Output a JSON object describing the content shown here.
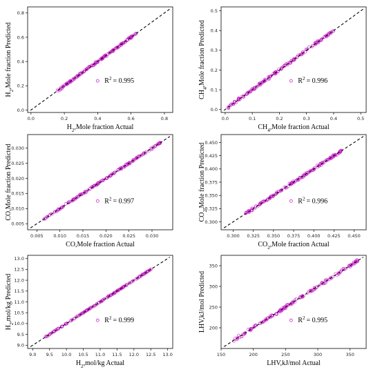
{
  "point_color": "#cc22cc",
  "line_color": "#000000",
  "chart_data": [
    {
      "type": "scatter",
      "xlabel_parts": [
        [
          "H",
          false
        ],
        [
          "2",
          true
        ],
        [
          ",Mole fraction Actual",
          false
        ]
      ],
      "ylabel_parts": [
        [
          "H",
          false
        ],
        [
          "2",
          true
        ],
        [
          ",Mole fraction Predicted",
          false
        ]
      ],
      "r2_text": "= 0.995",
      "xlim": [
        -0.02,
        0.85
      ],
      "ylim": [
        -0.02,
        0.85
      ],
      "xticks": [
        0.0,
        0.2,
        0.4,
        0.6,
        0.8
      ],
      "yticks": [
        0.0,
        0.2,
        0.4,
        0.6,
        0.8
      ],
      "xtick_labels": [
        "0.0",
        "0.2",
        "0.4",
        "0.6",
        "0.8"
      ],
      "ytick_labels": [
        "0.0",
        "0.2",
        "0.4",
        "0.6",
        "0.8"
      ],
      "data_range": [
        0.16,
        0.63
      ],
      "noise": 0.006,
      "series": [
        {
          "reference_line": "y = x"
        }
      ]
    },
    {
      "type": "scatter",
      "xlabel_parts": [
        [
          "CH",
          false
        ],
        [
          "4",
          true
        ],
        [
          ",Mole fraction Actual",
          false
        ]
      ],
      "ylabel_parts": [
        [
          "CH",
          false
        ],
        [
          "4",
          true
        ],
        [
          ",Mole fraction Predicted",
          false
        ]
      ],
      "r2_text": "= 0.996",
      "xlim": [
        -0.015,
        0.52
      ],
      "ylim": [
        -0.015,
        0.52
      ],
      "xticks": [
        0.0,
        0.1,
        0.2,
        0.3,
        0.4,
        0.5
      ],
      "yticks": [
        0.0,
        0.1,
        0.2,
        0.3,
        0.4,
        0.5
      ],
      "xtick_labels": [
        "0.0",
        "0.1",
        "0.2",
        "0.3",
        "0.4",
        "0.5"
      ],
      "ytick_labels": [
        "0.0",
        "0.1",
        "0.2",
        "0.3",
        "0.4",
        "0.5"
      ],
      "data_range": [
        0.01,
        0.4
      ],
      "noise": 0.005,
      "series": [
        {
          "reference_line": "y = x"
        }
      ]
    },
    {
      "type": "scatter",
      "xlabel_parts": [
        [
          "CO,Mole fraction Actual",
          false
        ]
      ],
      "ylabel_parts": [
        [
          "CO,Mole fraction Predicted",
          false
        ]
      ],
      "r2_text": "= 0.997",
      "xlim": [
        0.003,
        0.0345
      ],
      "ylim": [
        0.003,
        0.0345
      ],
      "xticks": [
        0.005,
        0.01,
        0.015,
        0.02,
        0.025,
        0.03
      ],
      "yticks": [
        0.005,
        0.01,
        0.015,
        0.02,
        0.025,
        0.03
      ],
      "xtick_labels": [
        "0.005",
        "0.010",
        "0.015",
        "0.020",
        "0.025",
        "0.030"
      ],
      "ytick_labels": [
        "0.005",
        "0.010",
        "0.015",
        "0.020",
        "0.025",
        "0.030"
      ],
      "data_range": [
        0.006,
        0.032
      ],
      "noise": 0.0002,
      "series": [
        {
          "reference_line": "y = x"
        }
      ]
    },
    {
      "type": "scatter",
      "xlabel_parts": [
        [
          "CO",
          false
        ],
        [
          "2",
          true
        ],
        [
          ",Mole fraction Actual",
          false
        ]
      ],
      "ylabel_parts": [
        [
          "CO",
          false
        ],
        [
          "2",
          true
        ],
        [
          ",Mole fraction Predicted",
          false
        ]
      ],
      "r2_text": "= 0.996",
      "xlim": [
        0.285,
        0.465
      ],
      "ylim": [
        0.285,
        0.465
      ],
      "xticks": [
        0.3,
        0.325,
        0.35,
        0.375,
        0.4,
        0.425,
        0.45
      ],
      "yticks": [
        0.3,
        0.325,
        0.35,
        0.375,
        0.4,
        0.425,
        0.45
      ],
      "xtick_labels": [
        "0.300",
        "0.325",
        "0.350",
        "0.375",
        "0.400",
        "0.425",
        "0.450"
      ],
      "ytick_labels": [
        "0.300",
        "0.325",
        "0.350",
        "0.375",
        "0.400",
        "0.425",
        "0.450"
      ],
      "data_range": [
        0.315,
        0.435
      ],
      "noise": 0.0015,
      "series": [
        {
          "reference_line": "y = x"
        }
      ]
    },
    {
      "type": "scatter",
      "xlabel_parts": [
        [
          "H",
          false
        ],
        [
          "2",
          true
        ],
        [
          ",mol/kg Actual",
          false
        ]
      ],
      "ylabel_parts": [
        [
          "H",
          false
        ],
        [
          "2",
          true
        ],
        [
          ",mol/kg Predicted",
          false
        ]
      ],
      "r2_text": "= 0.999",
      "xlim": [
        8.85,
        13.15
      ],
      "ylim": [
        8.85,
        13.15
      ],
      "xticks": [
        9.0,
        9.5,
        10.0,
        10.5,
        11.0,
        11.5,
        12.0,
        12.5,
        13.0
      ],
      "yticks": [
        9.0,
        9.5,
        10.0,
        10.5,
        11.0,
        11.5,
        12.0,
        12.5,
        13.0
      ],
      "xtick_labels": [
        "9.0",
        "9.5",
        "10.0",
        "10.5",
        "11.0",
        "11.5",
        "12.0",
        "12.5",
        "13.0"
      ],
      "ytick_labels": [
        "9.0",
        "9.5",
        "10.0",
        "10.5",
        "11.0",
        "11.5",
        "12.0",
        "12.5",
        "13.0"
      ],
      "data_range": [
        9.35,
        12.55
      ],
      "noise": 0.015,
      "series": [
        {
          "reference_line": "y = x"
        }
      ]
    },
    {
      "type": "scatter",
      "xlabel_parts": [
        [
          "LHV,kJ/mol Actual",
          false
        ]
      ],
      "ylabel_parts": [
        [
          "LHV,kJ/mol Predicted",
          false
        ]
      ],
      "r2_text": "= 0.995",
      "xlim": [
        150,
        375
      ],
      "ylim": [
        150,
        375
      ],
      "xticks": [
        150,
        200,
        250,
        300,
        350
      ],
      "yticks": [
        200,
        250,
        300,
        350
      ],
      "xtick_labels": [
        "150",
        "200",
        "250",
        "300",
        "350"
      ],
      "ytick_labels": [
        "200",
        "250",
        "300",
        "350"
      ],
      "data_range": [
        168,
        362
      ],
      "noise": 2.5,
      "series": [
        {
          "reference_line": "y = x"
        }
      ]
    }
  ]
}
